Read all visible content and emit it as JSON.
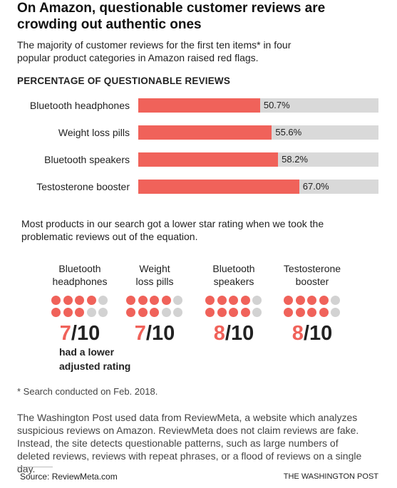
{
  "title": "On Amazon, questionable customer reviews are crowding out authentic ones",
  "subtitle": "The majority of customer reviews for the first ten items* in four popular product categories in Amazon raised red flags.",
  "chart_data": {
    "type": "bar",
    "orientation": "horizontal",
    "title": "PERCENTAGE OF QUESTIONABLE REVIEWS",
    "categories": [
      "Bluetooth headphones",
      "Weight loss pills",
      "Bluetooth speakers",
      "Testosterone booster"
    ],
    "values": [
      50.7,
      55.6,
      58.2,
      67.0
    ],
    "value_labels": [
      "50.7%",
      "55.6%",
      "58.2%",
      "67.0%"
    ],
    "color": "#f0625a",
    "track_color": "#d9d9d9",
    "xlim": [
      0,
      100
    ]
  },
  "ratings": {
    "intro": "Most products in our search got a lower star rating when we took the problematic reviews out of the equation.",
    "items": [
      {
        "label_lines": [
          "Bluetooth",
          "headphones"
        ],
        "score": 7,
        "max_label": "/10"
      },
      {
        "label_lines": [
          "Weight",
          "loss pills"
        ],
        "score": 7,
        "max_label": "/10"
      },
      {
        "label_lines": [
          "Bluetooth",
          "speakers"
        ],
        "score": 8,
        "max_label": "/10"
      },
      {
        "label_lines": [
          "Testosterone",
          "booster"
        ],
        "score": 8,
        "max_label": "/10"
      }
    ],
    "annotation_lines": [
      "had a lower",
      "adjusted rating"
    ]
  },
  "footnote": "* Search conducted on Feb. 2018.",
  "description": "The Washington Post used data from ReviewMeta, a website which analyzes suspicious reviews on Amazon. ReviewMeta does not claim reviews are fake. Instead, the site detects questionable patterns, such as large numbers of deleted reviews, reviews with repeat phrases, or  a flood of reviews on a single day.",
  "source": "Source: ReviewMeta.com",
  "credit": "THE WASHINGTON POST"
}
